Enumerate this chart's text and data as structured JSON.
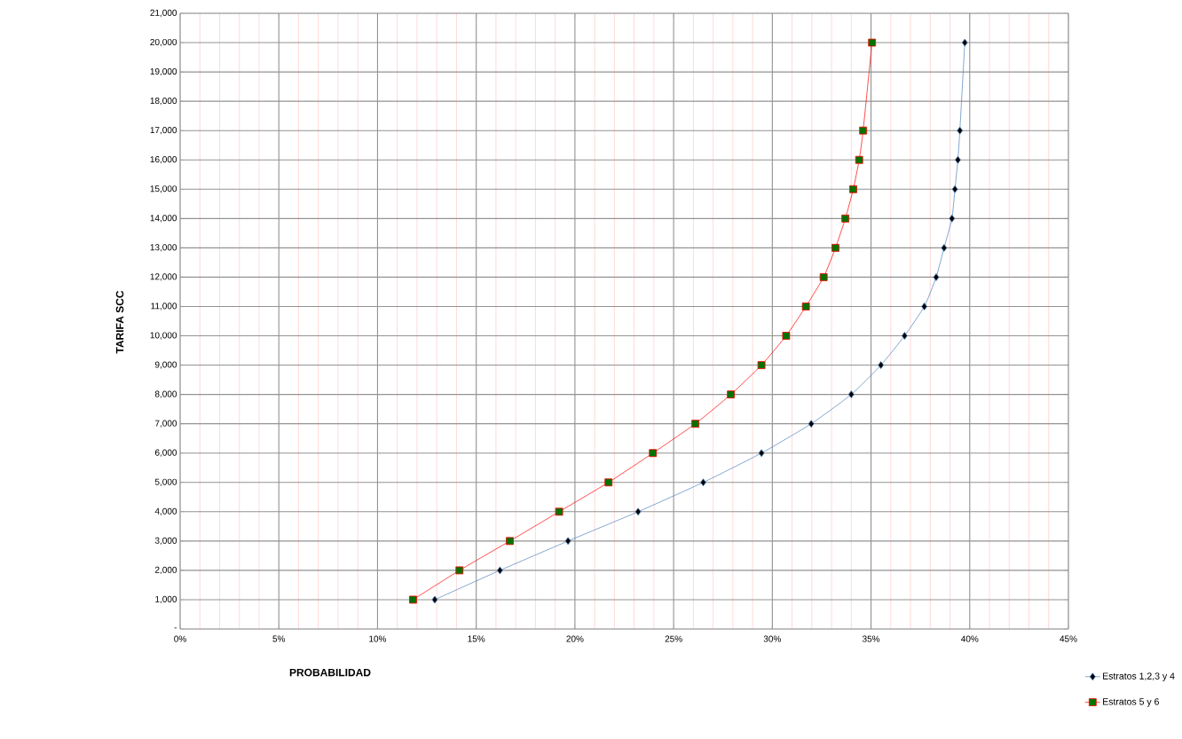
{
  "chart_data": {
    "type": "line",
    "xlabel": "PROBABILIDAD",
    "ylabel": "TARIFA  SCC",
    "series": [
      {
        "name": "Estratos 1,2,3 y 4",
        "color": "#4f81bd",
        "marker": "diamond",
        "x": [
          12.9,
          16.2,
          19.65,
          23.2,
          26.5,
          29.45,
          31.97,
          34.0,
          35.5,
          36.7,
          37.7,
          38.3,
          38.7,
          39.1,
          39.25,
          39.4,
          39.5,
          39.75
        ],
        "values": [
          1000,
          2000,
          3000,
          4000,
          5000,
          6000,
          7000,
          8000,
          9000,
          10000,
          11000,
          12000,
          13000,
          14000,
          15000,
          16000,
          17000,
          20000
        ]
      },
      {
        "name": "Estratos 5 y 6",
        "color": "#ff0000",
        "marker": "square",
        "x": [
          11.8,
          14.15,
          16.7,
          19.2,
          21.7,
          23.95,
          26.1,
          27.9,
          29.45,
          30.7,
          31.7,
          32.6,
          33.2,
          33.7,
          34.1,
          34.4,
          34.6,
          35.05
        ],
        "values": [
          1000,
          2000,
          3000,
          4000,
          5000,
          6000,
          7000,
          8000,
          9000,
          10000,
          11000,
          12000,
          13000,
          14000,
          15000,
          16000,
          17000,
          20000
        ]
      }
    ],
    "xlim": [
      0,
      45
    ],
    "xticks": [
      {
        "value": 0,
        "label": "0%"
      },
      {
        "value": 5,
        "label": "5%"
      },
      {
        "value": 10,
        "label": "10%"
      },
      {
        "value": 15,
        "label": "15%"
      },
      {
        "value": 20,
        "label": "20%"
      },
      {
        "value": 25,
        "label": "25%"
      },
      {
        "value": 30,
        "label": "30%"
      },
      {
        "value": 35,
        "label": "35%"
      },
      {
        "value": 40,
        "label": "40%"
      },
      {
        "value": 45,
        "label": "45%"
      },
      {
        "value": 1,
        "label": null
      },
      {
        "value": 2,
        "label": null
      },
      {
        "value": 3,
        "label": null
      },
      {
        "value": 4,
        "label": null
      },
      {
        "value": 6,
        "label": null
      },
      {
        "value": 7,
        "label": null
      },
      {
        "value": 8,
        "label": null
      },
      {
        "value": 9,
        "label": null
      },
      {
        "value": 11,
        "label": null
      },
      {
        "value": 12,
        "label": null
      },
      {
        "value": 13,
        "label": null
      },
      {
        "value": 14,
        "label": null
      },
      {
        "value": 16,
        "label": null
      },
      {
        "value": 17,
        "label": null
      },
      {
        "value": 18,
        "label": null
      },
      {
        "value": 19,
        "label": null
      },
      {
        "value": 21,
        "label": null
      },
      {
        "value": 22,
        "label": null
      },
      {
        "value": 23,
        "label": null
      },
      {
        "value": 24,
        "label": null
      },
      {
        "value": 26,
        "label": null
      },
      {
        "value": 27,
        "label": null
      },
      {
        "value": 28,
        "label": null
      },
      {
        "value": 29,
        "label": null
      },
      {
        "value": 31,
        "label": null
      },
      {
        "value": 32,
        "label": null
      },
      {
        "value": 33,
        "label": null
      },
      {
        "value": 34,
        "label": null
      },
      {
        "value": 36,
        "label": null
      },
      {
        "value": 37,
        "label": null
      },
      {
        "value": 38,
        "label": null
      },
      {
        "value": 39,
        "label": null
      },
      {
        "value": 41,
        "label": null
      },
      {
        "value": 42,
        "label": null
      },
      {
        "value": 43,
        "label": null
      },
      {
        "value": 44,
        "label": null
      }
    ],
    "ylim": [
      0,
      21000
    ],
    "yticks": [
      {
        "value": 0,
        "label": "-"
      },
      {
        "value": 1000,
        "label": "1,000"
      },
      {
        "value": 2000,
        "label": "2,000"
      },
      {
        "value": 3000,
        "label": "3,000"
      },
      {
        "value": 4000,
        "label": "4,000"
      },
      {
        "value": 5000,
        "label": "5,000"
      },
      {
        "value": 6000,
        "label": "6,000"
      },
      {
        "value": 7000,
        "label": "7,000"
      },
      {
        "value": 8000,
        "label": "8,000"
      },
      {
        "value": 9000,
        "label": "9,000"
      },
      {
        "value": 10000,
        "label": "10,000"
      },
      {
        "value": 11000,
        "label": "11,000"
      },
      {
        "value": 12000,
        "label": "12,000"
      },
      {
        "value": 13000,
        "label": "13,000"
      },
      {
        "value": 14000,
        "label": "14,000"
      },
      {
        "value": 15000,
        "label": "15,000"
      },
      {
        "value": 16000,
        "label": "16,000"
      },
      {
        "value": 17000,
        "label": "17,000"
      },
      {
        "value": 18000,
        "label": "18,000"
      },
      {
        "value": 19000,
        "label": "19,000"
      },
      {
        "value": 20000,
        "label": "20,000"
      },
      {
        "value": 21000,
        "label": "21,000"
      }
    ],
    "grid": true,
    "legend": "bottom right",
    "line_style": "solid"
  }
}
